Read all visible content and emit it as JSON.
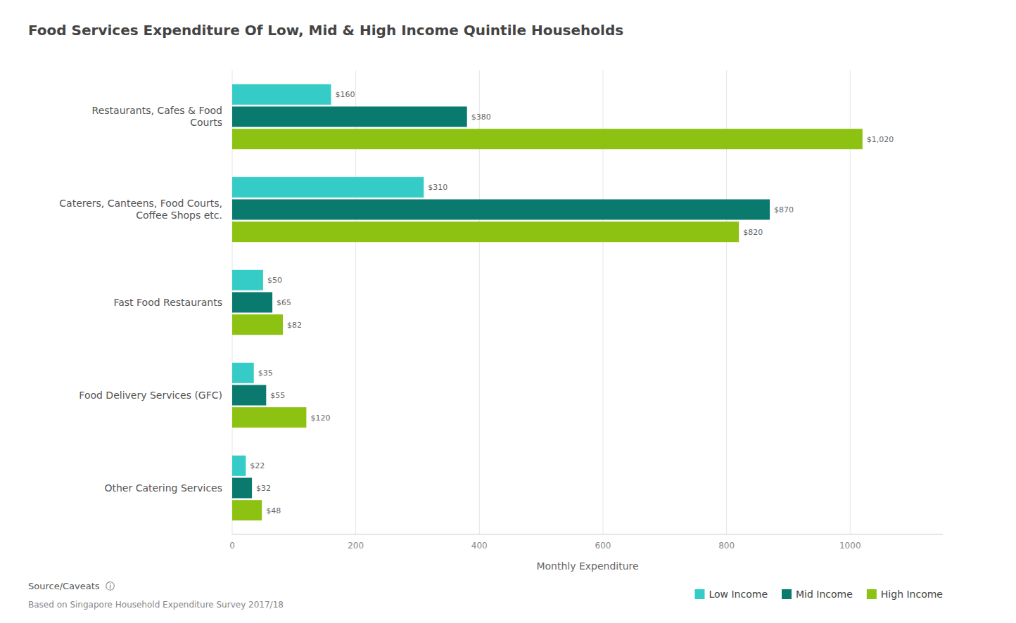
{
  "chart_data": {
    "type": "bar",
    "orientation": "horizontal",
    "title": "Food Services Expenditure Of Low, Mid & High Income Quintile Households",
    "categories": [
      "Restaurants, Cafes & Food\nCourts",
      "Caterers, Canteens, Food Courts,\nCoffee Shops etc.",
      "Fast Food Restaurants",
      "Food Delivery Services (GFC)",
      "Other Catering Services"
    ],
    "series": [
      {
        "name": "Low Income",
        "color": "#35CCC8",
        "values": [
          160,
          310,
          50,
          35,
          22
        ],
        "value_labels": [
          "$160",
          "$310",
          "$50",
          "$35",
          "$22"
        ]
      },
      {
        "name": "Mid Income",
        "color": "#0A7A6E",
        "values": [
          380,
          870,
          65,
          55,
          32
        ],
        "value_labels": [
          "$380",
          "$870",
          "$65",
          "$55",
          "$32"
        ]
      },
      {
        "name": "High Income",
        "color": "#8DC212",
        "values": [
          1020,
          820,
          82,
          120,
          48
        ],
        "value_labels": [
          "$1,020",
          "$820",
          "$82",
          "$120",
          "$48"
        ]
      }
    ],
    "x_label": "Monthly Expenditure",
    "xlim": [
      0,
      1150
    ],
    "xticks": [
      0,
      200,
      400,
      600,
      800,
      1000
    ],
    "grid": true,
    "legend": "lower right",
    "data_labels": true,
    "annotations": [
      "Source/Caveats  ⓘ",
      "Based on Singapore Household Expenditure Survey 2017/18"
    ]
  }
}
